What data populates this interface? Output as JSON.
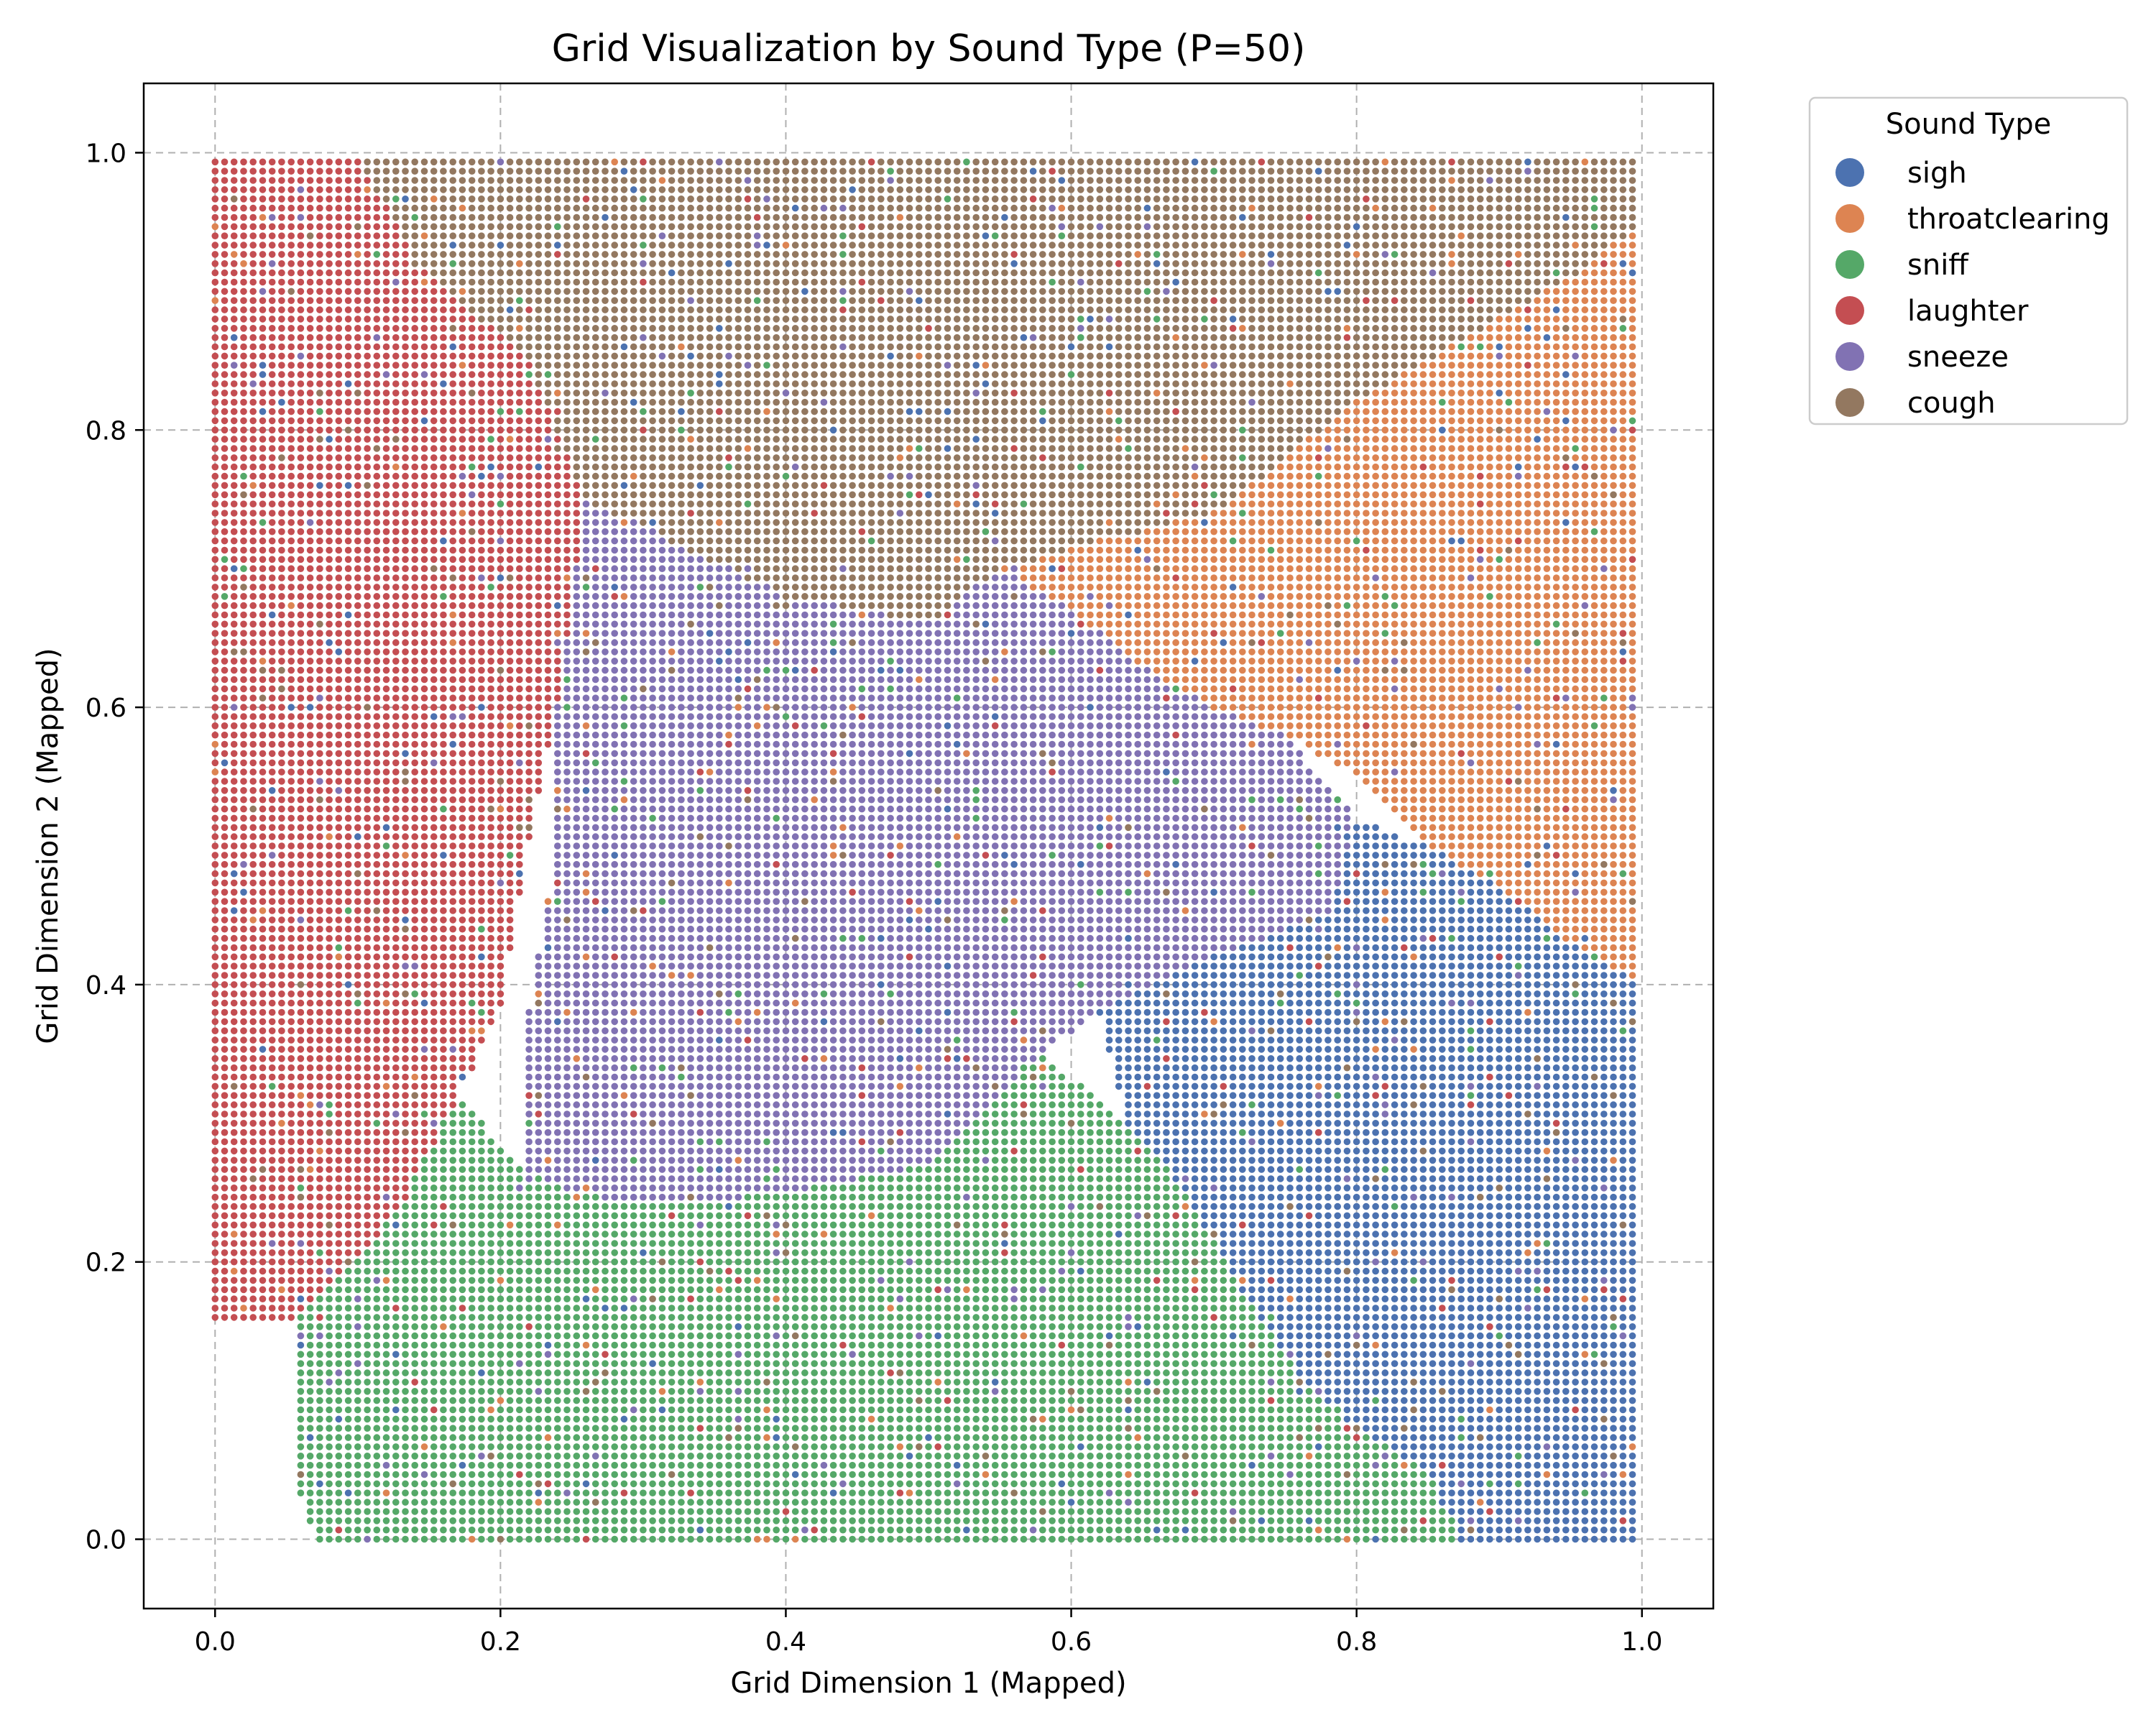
{
  "chart_data": {
    "type": "scatter",
    "title": "Grid Visualization by Sound Type (P=50)",
    "xlabel": "Grid Dimension 1 (Mapped)",
    "ylabel": "Grid Dimension 2 (Mapped)",
    "xlim": [
      -0.05,
      1.05
    ],
    "ylim": [
      -0.05,
      1.05
    ],
    "xticks": [
      "0.0",
      "0.2",
      "0.4",
      "0.6",
      "0.8",
      "1.0"
    ],
    "yticks": [
      "0.0",
      "0.2",
      "0.4",
      "0.6",
      "0.8",
      "1.0"
    ],
    "xtick_values": [
      0.0,
      0.2,
      0.4,
      0.6,
      0.8,
      1.0
    ],
    "ytick_values": [
      0.0,
      0.2,
      0.4,
      0.6,
      0.8,
      1.0
    ],
    "grid": true,
    "legend_position": "outside-upper-right",
    "legend_title": "Sound Type",
    "series": [
      {
        "name": "sigh",
        "color": "#4c72b0"
      },
      {
        "name": "throatclearing",
        "color": "#dd8452"
      },
      {
        "name": "sniff",
        "color": "#55a868"
      },
      {
        "name": "laughter",
        "color": "#c44e52"
      },
      {
        "name": "sneeze",
        "color": "#8172b3"
      },
      {
        "name": "cough",
        "color": "#937860"
      }
    ],
    "grid_resolution": 150,
    "regions": [
      {
        "series": "laughter",
        "polygon": [
          [
            0.0,
            0.17
          ],
          [
            0.0,
            1.0
          ],
          [
            0.1,
            1.0
          ],
          [
            0.14,
            0.92
          ],
          [
            0.22,
            0.85
          ],
          [
            0.26,
            0.75
          ],
          [
            0.24,
            0.6
          ],
          [
            0.22,
            0.5
          ],
          [
            0.2,
            0.38
          ],
          [
            0.17,
            0.32
          ],
          [
            0.13,
            0.24
          ],
          [
            0.1,
            0.2
          ],
          [
            0.06,
            0.16
          ],
          [
            0.0,
            0.16
          ]
        ]
      },
      {
        "series": "cough",
        "polygon": [
          [
            0.1,
            1.0
          ],
          [
            1.0,
            1.0
          ],
          [
            1.0,
            0.95
          ],
          [
            0.95,
            0.91
          ],
          [
            0.9,
            0.88
          ],
          [
            0.85,
            0.85
          ],
          [
            0.8,
            0.82
          ],
          [
            0.75,
            0.78
          ],
          [
            0.7,
            0.74
          ],
          [
            0.62,
            0.72
          ],
          [
            0.55,
            0.7
          ],
          [
            0.5,
            0.66
          ],
          [
            0.4,
            0.68
          ],
          [
            0.32,
            0.72
          ],
          [
            0.26,
            0.75
          ],
          [
            0.22,
            0.85
          ],
          [
            0.14,
            0.92
          ]
        ]
      },
      {
        "series": "throatclearing",
        "polygon": [
          [
            1.0,
            0.95
          ],
          [
            1.0,
            0.4
          ],
          [
            0.95,
            0.43
          ],
          [
            0.9,
            0.47
          ],
          [
            0.85,
            0.5
          ],
          [
            0.8,
            0.55
          ],
          [
            0.75,
            0.58
          ],
          [
            0.7,
            0.6
          ],
          [
            0.65,
            0.63
          ],
          [
            0.6,
            0.67
          ],
          [
            0.55,
            0.7
          ],
          [
            0.62,
            0.72
          ],
          [
            0.7,
            0.74
          ],
          [
            0.75,
            0.78
          ],
          [
            0.8,
            0.82
          ],
          [
            0.85,
            0.85
          ],
          [
            0.9,
            0.88
          ],
          [
            0.95,
            0.91
          ]
        ]
      },
      {
        "series": "sneeze",
        "polygon": [
          [
            0.26,
            0.75
          ],
          [
            0.32,
            0.72
          ],
          [
            0.4,
            0.68
          ],
          [
            0.5,
            0.66
          ],
          [
            0.55,
            0.7
          ],
          [
            0.6,
            0.67
          ],
          [
            0.65,
            0.63
          ],
          [
            0.7,
            0.6
          ],
          [
            0.75,
            0.58
          ],
          [
            0.8,
            0.52
          ],
          [
            0.78,
            0.45
          ],
          [
            0.7,
            0.42
          ],
          [
            0.62,
            0.38
          ],
          [
            0.58,
            0.35
          ],
          [
            0.5,
            0.27
          ],
          [
            0.4,
            0.25
          ],
          [
            0.3,
            0.24
          ],
          [
            0.22,
            0.26
          ],
          [
            0.22,
            0.38
          ],
          [
            0.24,
            0.5
          ],
          [
            0.24,
            0.6
          ]
        ]
      },
      {
        "series": "sigh",
        "polygon": [
          [
            1.0,
            0.4
          ],
          [
            1.0,
            0.0
          ],
          [
            0.87,
            0.0
          ],
          [
            0.85,
            0.05
          ],
          [
            0.8,
            0.08
          ],
          [
            0.76,
            0.12
          ],
          [
            0.72,
            0.18
          ],
          [
            0.68,
            0.25
          ],
          [
            0.64,
            0.3
          ],
          [
            0.62,
            0.38
          ],
          [
            0.7,
            0.42
          ],
          [
            0.78,
            0.45
          ],
          [
            0.8,
            0.52
          ],
          [
            0.85,
            0.5
          ],
          [
            0.9,
            0.47
          ],
          [
            0.95,
            0.43
          ]
        ]
      },
      {
        "series": "sniff",
        "polygon": [
          [
            0.07,
            0.0
          ],
          [
            0.87,
            0.0
          ],
          [
            0.85,
            0.05
          ],
          [
            0.8,
            0.08
          ],
          [
            0.76,
            0.12
          ],
          [
            0.72,
            0.18
          ],
          [
            0.68,
            0.25
          ],
          [
            0.64,
            0.3
          ],
          [
            0.58,
            0.35
          ],
          [
            0.5,
            0.27
          ],
          [
            0.4,
            0.25
          ],
          [
            0.3,
            0.24
          ],
          [
            0.22,
            0.26
          ],
          [
            0.17,
            0.32
          ],
          [
            0.13,
            0.24
          ],
          [
            0.1,
            0.2
          ],
          [
            0.06,
            0.16
          ],
          [
            0.06,
            0.03
          ]
        ]
      }
    ]
  }
}
